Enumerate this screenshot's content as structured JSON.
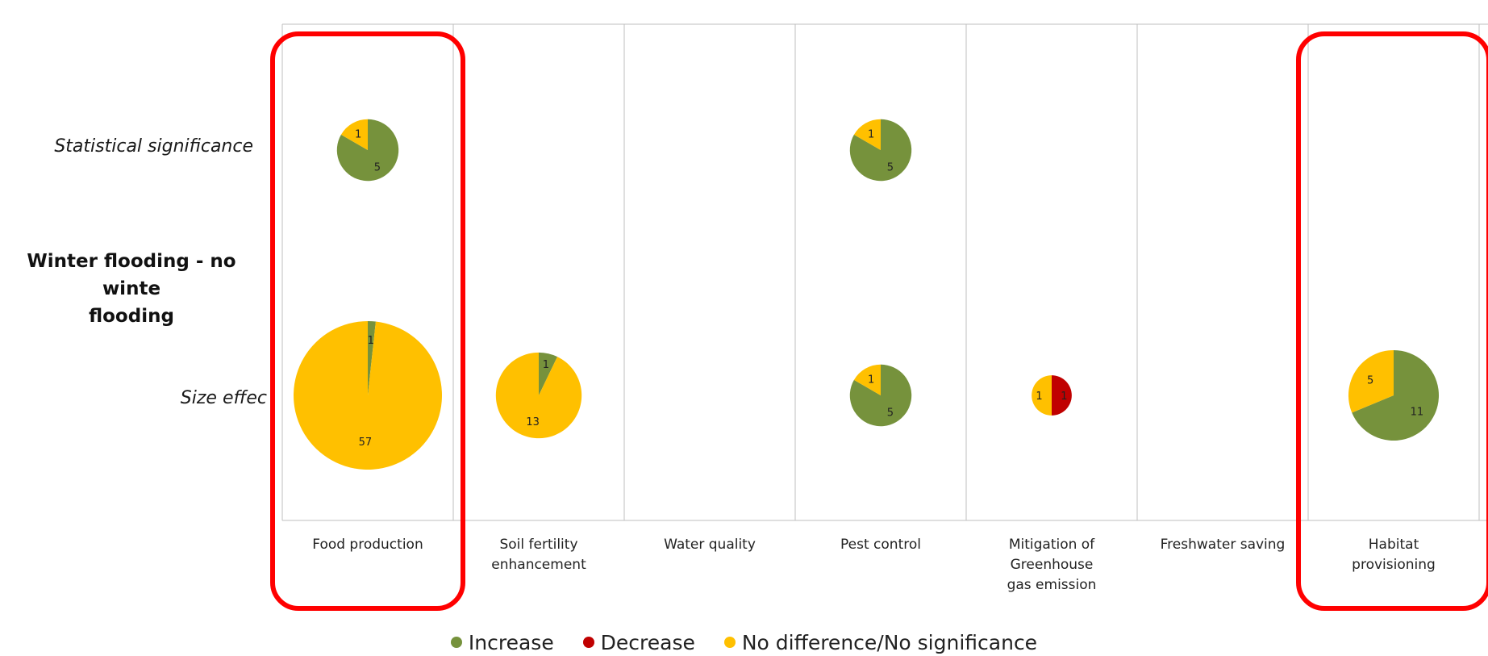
{
  "colors": {
    "increase": "#76923C",
    "decrease": "#C00000",
    "no_difference": "#FFC000",
    "highlight": "#FF0000",
    "grid": "#BFBFBF"
  },
  "group_label": "Winter flooding - no winter flooding",
  "group_label_lines": [
    "Winter flooding - no winte",
    "flooding"
  ],
  "row_labels": {
    "statistical_significance": "Statistical significance",
    "size_effect": "Size effect"
  },
  "row_labels_display": {
    "statistical_significance": "Statistical significance",
    "size_effect": "Size effec"
  },
  "categories": [
    "Food production",
    "Soil fertility enhancement",
    "Water quality",
    "Pest control",
    "Mitigation of Greenhouse gas emission",
    "Freshwater saving",
    "Habitat provisioning"
  ],
  "category_lines": [
    [
      "Food production"
    ],
    [
      "Soil fertility",
      "enhancement"
    ],
    [
      "Water quality"
    ],
    [
      "Pest control"
    ],
    [
      "Mitigation of",
      "Greenhouse",
      "gas emission"
    ],
    [
      "Freshwater saving"
    ],
    [
      "Habitat",
      "provisioning"
    ]
  ],
  "highlighted_categories": [
    "Food production",
    "Habitat provisioning"
  ],
  "legend": [
    {
      "key": "increase",
      "label": "Increase"
    },
    {
      "key": "decrease",
      "label": "Decrease"
    },
    {
      "key": "no_difference",
      "label": "No difference/No significance"
    }
  ],
  "chart_data": {
    "type": "pie",
    "rows": [
      "Statistical significance",
      "Size effect"
    ],
    "series_keys": [
      "increase",
      "decrease",
      "no_difference"
    ],
    "series_names": [
      "Increase",
      "Decrease",
      "No difference/No significance"
    ],
    "pies": [
      {
        "category": "Food production",
        "row": "Statistical significance",
        "values": {
          "increase": 5,
          "decrease": 0,
          "no_difference": 1
        }
      },
      {
        "category": "Food production",
        "row": "Size effect",
        "values": {
          "increase": 1,
          "decrease": 0,
          "no_difference": 57
        }
      },
      {
        "category": "Soil fertility enhancement",
        "row": "Size effect",
        "values": {
          "increase": 1,
          "decrease": 0,
          "no_difference": 13
        }
      },
      {
        "category": "Pest control",
        "row": "Statistical significance",
        "values": {
          "increase": 5,
          "decrease": 0,
          "no_difference": 1
        }
      },
      {
        "category": "Pest control",
        "row": "Size effect",
        "values": {
          "increase": 5,
          "decrease": 0,
          "no_difference": 1
        }
      },
      {
        "category": "Mitigation of Greenhouse gas emission",
        "row": "Size effect",
        "values": {
          "increase": 0,
          "decrease": 1,
          "no_difference": 1
        }
      },
      {
        "category": "Habitat provisioning",
        "row": "Size effect",
        "values": {
          "increase": 11,
          "decrease": 0,
          "no_difference": 5
        }
      }
    ],
    "grid": true,
    "legend_position": "bottom"
  }
}
